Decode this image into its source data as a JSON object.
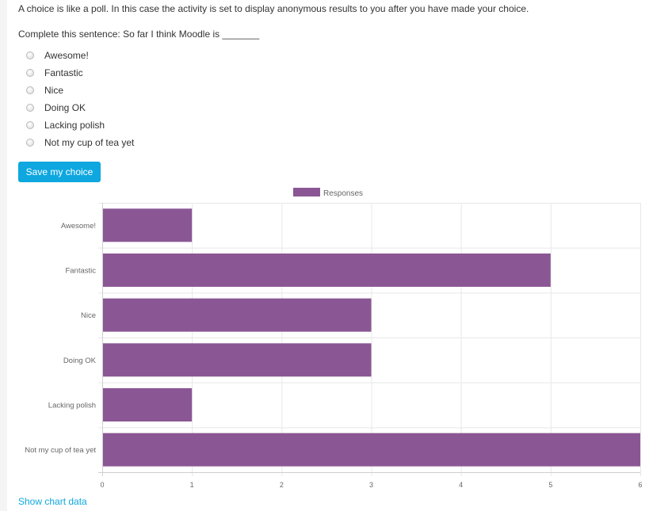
{
  "intro_text": "A choice is like a poll. In this case the activity is set to display anonymous results to you after you have made your choice.",
  "question_text": "Complete this sentence: So far I think Moodle is _______",
  "options": [
    {
      "label": "Awesome!"
    },
    {
      "label": "Fantastic"
    },
    {
      "label": "Nice"
    },
    {
      "label": "Doing OK"
    },
    {
      "label": "Lacking polish"
    },
    {
      "label": "Not my cup of tea yet"
    }
  ],
  "save_button_label": "Save my choice",
  "show_chart_data_label": "Show chart data",
  "colors": {
    "bar": "#8a5794",
    "link": "#0ea7df",
    "button": "#0ea7df"
  },
  "chart_data": {
    "type": "bar",
    "orientation": "horizontal",
    "categories": [
      "Awesome!",
      "Fantastic",
      "Nice",
      "Doing OK",
      "Lacking polish",
      "Not my cup of tea yet"
    ],
    "series": [
      {
        "name": "Responses",
        "values": [
          1,
          5,
          3,
          3,
          1,
          6
        ]
      }
    ],
    "xlim": [
      0,
      6
    ],
    "xticks": [
      "0",
      "1",
      "2",
      "3",
      "4",
      "5",
      "6"
    ],
    "grid": true,
    "legend": "top-center"
  }
}
